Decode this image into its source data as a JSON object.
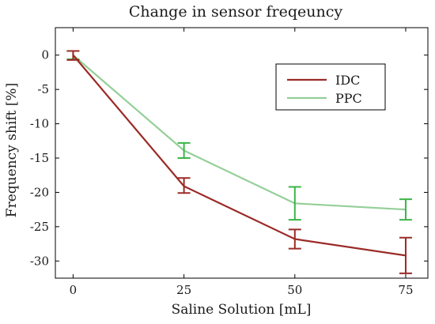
{
  "chart_data": {
    "type": "line",
    "title": "Change in sensor freqeuncy",
    "xlabel": "Saline Solution [mL]",
    "ylabel": "Frequency shift [%]",
    "x": [
      0,
      25,
      50,
      75
    ],
    "x_tick_labels": [
      "0",
      "25",
      "50",
      "75"
    ],
    "xlim": [
      -4,
      80
    ],
    "ylim": [
      -32.5,
      4
    ],
    "y_ticks": [
      0,
      -5,
      -10,
      -15,
      -20,
      -25,
      -30
    ],
    "y_tick_labels": [
      "0",
      "-5",
      "-10",
      "-15",
      "-20",
      "-25",
      "-30"
    ],
    "grid": false,
    "legend_position": "upper right",
    "series": [
      {
        "name": "IDC",
        "color": "#9b2a26",
        "values": [
          0,
          -19.1,
          -26.8,
          -29.2
        ],
        "err_low": [
          -0.7,
          -20.1,
          -28.2,
          -31.8
        ],
        "err_high": [
          0.6,
          -17.9,
          -25.4,
          -26.6
        ]
      },
      {
        "name": "PPC",
        "color": "#94cf98",
        "error_color": "#3cb448",
        "values": [
          0,
          -13.9,
          -21.6,
          -22.5
        ],
        "err_low": [
          -0.6,
          -15.0,
          -24.0,
          -24.0
        ],
        "err_high": [
          0.6,
          -12.8,
          -19.2,
          -21.0
        ]
      }
    ]
  }
}
